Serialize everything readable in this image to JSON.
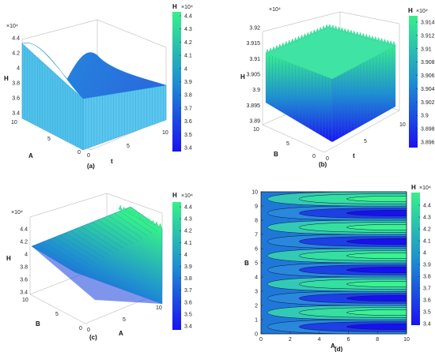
{
  "colors": {
    "low": "#1a12f0",
    "high": "#37f08a"
  },
  "chart_data": [
    {
      "id": "a",
      "type": "surface",
      "caption": "(a)",
      "xlabel": "t",
      "ylabel": "A",
      "zlabel": "H",
      "z_exponent": "×10⁴",
      "x_ticks": [
        "0",
        "5",
        "10"
      ],
      "y_ticks": [
        "0",
        "5",
        "10"
      ],
      "z_ticks": [
        "3.4",
        "3.6",
        "3.8",
        "4",
        "4.2",
        "4.4"
      ],
      "zlim": [
        3.4,
        4.5
      ],
      "corners": {
        "A0_t0": 3.7,
        "A10_t0": 4.45,
        "A0_t10": 3.7,
        "A10_t10": 4.0
      },
      "colorbar": {
        "title": "H",
        "exponent": "×10⁴",
        "ticks": [
          "3.4",
          "3.5",
          "3.6",
          "3.7",
          "3.8",
          "3.9",
          "4",
          "4.1",
          "4.2",
          "4.3",
          "4.4"
        ]
      }
    },
    {
      "id": "b",
      "type": "surface",
      "caption": "(b)",
      "xlabel": "t",
      "ylabel": "B",
      "zlabel": "H",
      "z_exponent": "×10⁴",
      "x_ticks": [
        "0",
        "5",
        "10"
      ],
      "y_ticks": [
        "0",
        "5",
        "10"
      ],
      "z_ticks": [
        "3.89",
        "3.895",
        "3.9",
        "3.905",
        "3.91",
        "3.915",
        "3.92"
      ],
      "zlim": [
        3.89,
        3.92
      ],
      "colorbar": {
        "title": "H",
        "exponent": "×10⁴",
        "ticks": [
          "3.896",
          "3.898",
          "3.9",
          "3.902",
          "3.904",
          "3.906",
          "3.908",
          "3.91",
          "3.912",
          "3.914"
        ]
      }
    },
    {
      "id": "c",
      "type": "surface",
      "caption": "(c)",
      "xlabel": "A",
      "ylabel": "B",
      "zlabel": "H",
      "z_exponent": "×10⁴",
      "x_ticks": [
        "0",
        "5",
        "10"
      ],
      "y_ticks": [
        "0",
        "5",
        "10"
      ],
      "z_ticks": [
        "3.4",
        "3.6",
        "3.8",
        "4",
        "4.2",
        "4.4"
      ],
      "zlim": [
        3.4,
        4.5
      ],
      "colorbar": {
        "title": "H",
        "exponent": "×10⁴",
        "ticks": [
          "3.4",
          "3.5",
          "3.6",
          "3.7",
          "3.8",
          "3.9",
          "4",
          "4.1",
          "4.2",
          "4.3",
          "4.4"
        ]
      }
    },
    {
      "id": "d",
      "type": "contour",
      "caption": "(d)",
      "xlabel": "A",
      "ylabel": "B",
      "x_ticks": [
        "0",
        "2",
        "4",
        "6",
        "8",
        "10"
      ],
      "y_ticks": [
        "0",
        "1",
        "2",
        "3",
        "4",
        "5",
        "6",
        "7",
        "8",
        "9",
        "10"
      ],
      "xlim": [
        0,
        10
      ],
      "ylim": [
        0,
        10
      ],
      "colorbar": {
        "title": "H",
        "exponent": "×10⁴",
        "ticks": [
          "3.4",
          "3.5",
          "3.6",
          "3.7",
          "3.8",
          "3.9",
          "4",
          "4.1",
          "4.2",
          "4.3",
          "4.4"
        ]
      }
    }
  ]
}
